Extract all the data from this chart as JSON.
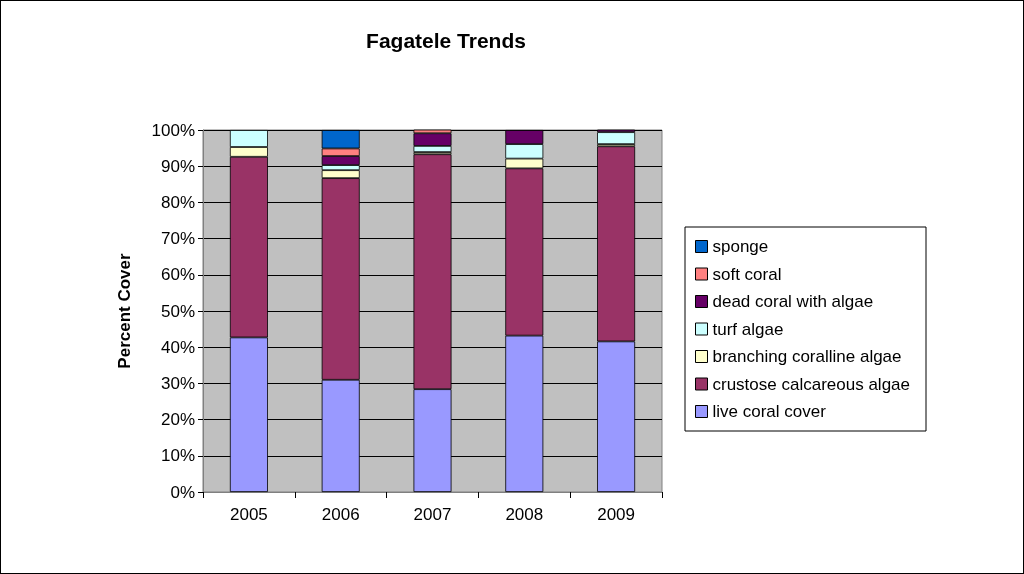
{
  "chart_data": {
    "type": "bar",
    "title": "Fagatele Trends",
    "ylabel": "Percent Cover",
    "stacked": true,
    "grid": "y",
    "legend": "right",
    "categories": [
      "2005",
      "2006",
      "2007",
      "2008",
      "2009"
    ],
    "ylim": [
      0,
      100
    ],
    "yticks": [
      {
        "value": 0,
        "label": "0%"
      },
      {
        "value": 10,
        "label": "10%"
      },
      {
        "value": 20,
        "label": "20%"
      },
      {
        "value": 30,
        "label": "30%"
      },
      {
        "value": 40,
        "label": "40%"
      },
      {
        "value": 50,
        "label": "50%"
      },
      {
        "value": 60,
        "label": "60%"
      },
      {
        "value": 70,
        "label": "70%"
      },
      {
        "value": 80,
        "label": "80%"
      },
      {
        "value": 90,
        "label": "90%"
      },
      {
        "value": 100,
        "label": "100%"
      }
    ],
    "series": [
      {
        "name": "live coral cover",
        "color": "#9999ff",
        "values": [
          42.7,
          31.0,
          28.4,
          43.2,
          41.6
        ]
      },
      {
        "name": "crustose calcareous algae",
        "color": "#993366",
        "values": [
          49.9,
          55.7,
          64.9,
          46.2,
          53.9
        ]
      },
      {
        "name": "branching coralline algae",
        "color": "#ffffcc",
        "values": [
          2.7,
          2.2,
          0.6,
          2.7,
          0.6
        ]
      },
      {
        "name": "turf algae",
        "color": "#ccffff",
        "values": [
          4.7,
          1.4,
          1.7,
          4.0,
          3.3
        ]
      },
      {
        "name": "dead coral with algae",
        "color": "#660066",
        "values": [
          null,
          2.5,
          3.5,
          3.9,
          0.7
        ]
      },
      {
        "name": "soft coral",
        "color": "#ff8080",
        "values": [
          null,
          2.1,
          1.2,
          null,
          null
        ]
      },
      {
        "name": "sponge",
        "color": "#0066cc",
        "values": [
          null,
          5.1,
          null,
          null,
          null
        ]
      }
    ]
  }
}
